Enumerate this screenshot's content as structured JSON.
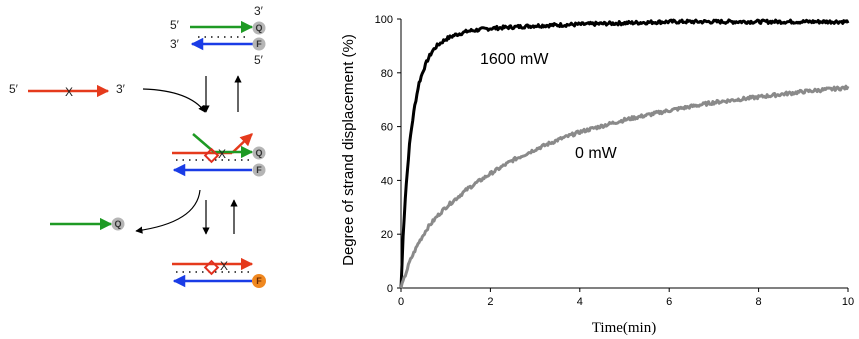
{
  "diagram": {
    "labels": {
      "five_prime": "5′",
      "three_prime": "3′",
      "quencher": "Q",
      "fluorophore": "F",
      "cross": "X"
    },
    "colors": {
      "target": "#e53a1c",
      "quencher_strand": "#1e9a24",
      "fluor_strand": "#1a3ce6",
      "bead": "#b5b5b5",
      "bead_lit": "#f08820",
      "diamond": "#e03020"
    }
  },
  "chart_data": {
    "type": "line",
    "title": "",
    "xlabel": "Time(min)",
    "ylabel": "Degree of strand displacement (%)",
    "xlim": [
      0,
      10
    ],
    "ylim": [
      0,
      100
    ],
    "xticks": [
      0,
      2,
      4,
      6,
      8,
      10
    ],
    "yticks": [
      0,
      20,
      40,
      60,
      80,
      100
    ],
    "grid": false,
    "legend": "none",
    "series": [
      {
        "name": "1600 mW",
        "color": "#000000",
        "x": [
          0,
          0.05,
          0.1,
          0.2,
          0.3,
          0.4,
          0.5,
          0.6,
          0.7,
          0.8,
          1.0,
          1.2,
          1.5,
          2.0,
          2.5,
          3.0,
          4.0,
          5.0,
          6.0,
          7.0,
          8.0,
          9.0,
          10.0
        ],
        "values": [
          0,
          20,
          35,
          55,
          67,
          76,
          81,
          85,
          88,
          90,
          92.5,
          94,
          95.5,
          96.5,
          97,
          97.5,
          98,
          98.5,
          99,
          99,
          99,
          99,
          99
        ]
      },
      {
        "name": "0 mW",
        "color": "#8a8a8a",
        "x": [
          0,
          0.1,
          0.2,
          0.4,
          0.6,
          0.8,
          1.0,
          1.5,
          2.0,
          2.5,
          3.0,
          3.5,
          4.0,
          5.0,
          6.0,
          7.0,
          8.0,
          9.0,
          10.0
        ],
        "values": [
          0,
          5,
          10,
          17,
          22.5,
          26.5,
          30,
          37,
          42.5,
          47.5,
          51.5,
          55,
          58,
          62.5,
          66,
          69,
          71,
          73,
          74.5
        ]
      }
    ]
  }
}
